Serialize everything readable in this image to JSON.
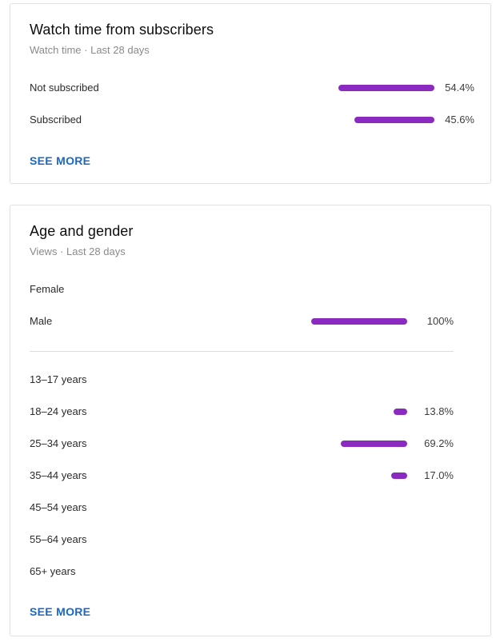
{
  "theme": {
    "bar_color": "#8b2ac0",
    "link_color": "#1a67c5"
  },
  "subscribers_card": {
    "title": "Watch time from subscribers",
    "subtitle": "Watch time · Last 28 days",
    "rows": [
      {
        "label": "Not subscribed",
        "value": "54.4%",
        "fraction": 0.544
      },
      {
        "label": "Subscribed",
        "value": "45.6%",
        "fraction": 0.456
      }
    ],
    "see_more": "SEE MORE"
  },
  "age_gender_card": {
    "title": "Age and gender",
    "subtitle": "Views · Last 28 days",
    "gender_rows": [
      {
        "label": "Female",
        "value": "",
        "fraction": 0
      },
      {
        "label": "Male",
        "value": "100%",
        "fraction": 1.0
      }
    ],
    "age_rows": [
      {
        "label": "13–17 years",
        "value": "",
        "fraction": 0
      },
      {
        "label": "18–24 years",
        "value": "13.8%",
        "fraction": 0.138
      },
      {
        "label": "25–34 years",
        "value": "69.2%",
        "fraction": 0.692
      },
      {
        "label": "35–44 years",
        "value": "17.0%",
        "fraction": 0.17
      },
      {
        "label": "45–54 years",
        "value": "",
        "fraction": 0
      },
      {
        "label": "55–64 years",
        "value": "",
        "fraction": 0
      },
      {
        "label": "65+ years",
        "value": "",
        "fraction": 0
      }
    ],
    "see_more": "SEE MORE"
  }
}
